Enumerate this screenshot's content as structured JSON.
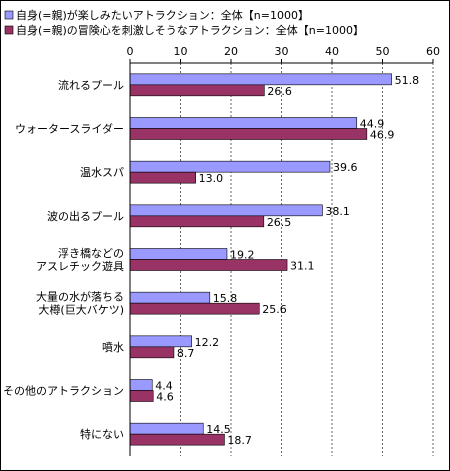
{
  "chart_data": {
    "type": "bar",
    "orientation": "horizontal",
    "title": "",
    "xlim": [
      0,
      60
    ],
    "xticks": [
      0,
      10,
      20,
      30,
      40,
      50,
      60
    ],
    "grid": "vertical dashed",
    "legend": "top",
    "categories": [
      [
        "流れるプール"
      ],
      [
        "ウォータースライダー"
      ],
      [
        "温水スパ"
      ],
      [
        "波の出るプール"
      ],
      [
        "浮き橋などの",
        "アスレチック遊具"
      ],
      [
        "大量の水が落ちる",
        "大樽(巨大バケツ)"
      ],
      [
        "噴水"
      ],
      [
        "その他のアトラクション"
      ],
      [
        "特にない"
      ]
    ],
    "series": [
      {
        "name": "自身(=親)が楽しみたいアトラクション：全体【n=1000】",
        "color": "#9999ff",
        "values": [
          51.8,
          44.9,
          39.6,
          38.1,
          19.2,
          15.8,
          12.2,
          4.4,
          14.5
        ]
      },
      {
        "name": "自身(=親)の冒険心を刺激しそうなアトラクション：全体【n=1000】",
        "color": "#993366",
        "values": [
          26.6,
          46.9,
          13.0,
          26.5,
          31.1,
          25.6,
          8.7,
          4.6,
          18.7
        ]
      }
    ]
  }
}
